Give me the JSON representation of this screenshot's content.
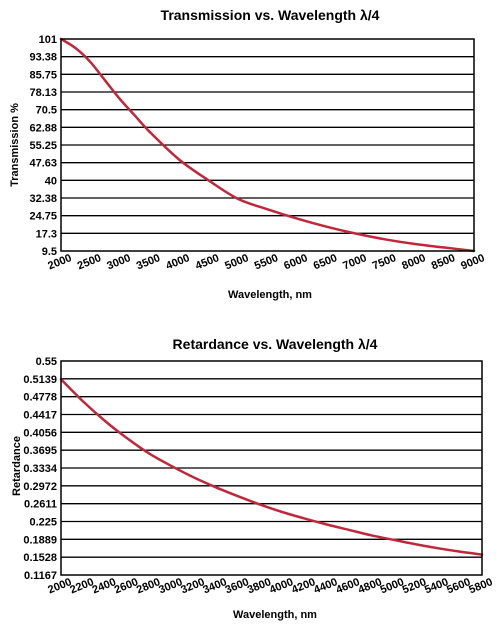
{
  "colors": {
    "curve": "#c0273a",
    "grid": "#000000"
  },
  "chart_data": [
    {
      "type": "line",
      "title": "Transmission vs. Wavelength λ/4",
      "xlabel": "Wavelength, nm",
      "ylabel": "Transmission %",
      "xlim": [
        2000,
        9000
      ],
      "ylim": [
        9.5,
        101
      ],
      "x_ticks": [
        "2000",
        "2500",
        "3000",
        "3500",
        "4000",
        "4500",
        "5000",
        "5500",
        "6000",
        "6500",
        "7000",
        "7500",
        "8000",
        "8500",
        "9000"
      ],
      "y_ticks": [
        "101",
        "93.38",
        "85.75",
        "78.13",
        "70.5",
        "62.88",
        "55.25",
        "47.63",
        "40",
        "32.38",
        "24.75",
        "17.3",
        "9.5"
      ],
      "grid": "horizontal",
      "series": [
        {
          "x": [
            2000,
            2250,
            2500,
            2750,
            3000,
            3250,
            3500,
            4000,
            4500,
            5000,
            5500,
            6000,
            6500,
            7000,
            7500,
            8000,
            8500,
            9000
          ],
          "y": [
            101,
            97,
            91,
            83,
            75,
            68,
            61,
            49,
            40,
            32,
            27.5,
            23.5,
            20,
            17,
            14.5,
            12.5,
            11,
            9.5
          ]
        }
      ]
    },
    {
      "type": "line",
      "title": "Retardance vs. Wavelength λ/4",
      "xlabel": "Wavelength, nm",
      "ylabel": "Retardance",
      "xlim": [
        2000,
        5800
      ],
      "ylim": [
        0.1167,
        0.55
      ],
      "x_ticks": [
        "2000",
        "2200",
        "2400",
        "2600",
        "2800",
        "3000",
        "3200",
        "3400",
        "3600",
        "3800",
        "4000",
        "4200",
        "4400",
        "4600",
        "4800",
        "5000",
        "5200",
        "5400",
        "5600",
        "5800"
      ],
      "y_ticks": [
        "0.55",
        "0.5139",
        "0.4778",
        "0.4417",
        "0.4056",
        "0.3695",
        "0.3334",
        "0.2972",
        "0.2611",
        "0.225",
        "0.1889",
        "0.1528",
        "0.1167"
      ],
      "grid": "horizontal",
      "series": [
        {
          "x": [
            2000,
            2200,
            2400,
            2600,
            2800,
            3000,
            3200,
            3400,
            3600,
            3800,
            4000,
            4200,
            4400,
            4600,
            4800,
            5000,
            5200,
            5400,
            5600,
            5800
          ],
          "y": [
            0.513,
            0.468,
            0.428,
            0.393,
            0.362,
            0.337,
            0.314,
            0.294,
            0.276,
            0.259,
            0.244,
            0.231,
            0.219,
            0.208,
            0.197,
            0.188,
            0.179,
            0.171,
            0.164,
            0.158
          ]
        }
      ]
    }
  ]
}
